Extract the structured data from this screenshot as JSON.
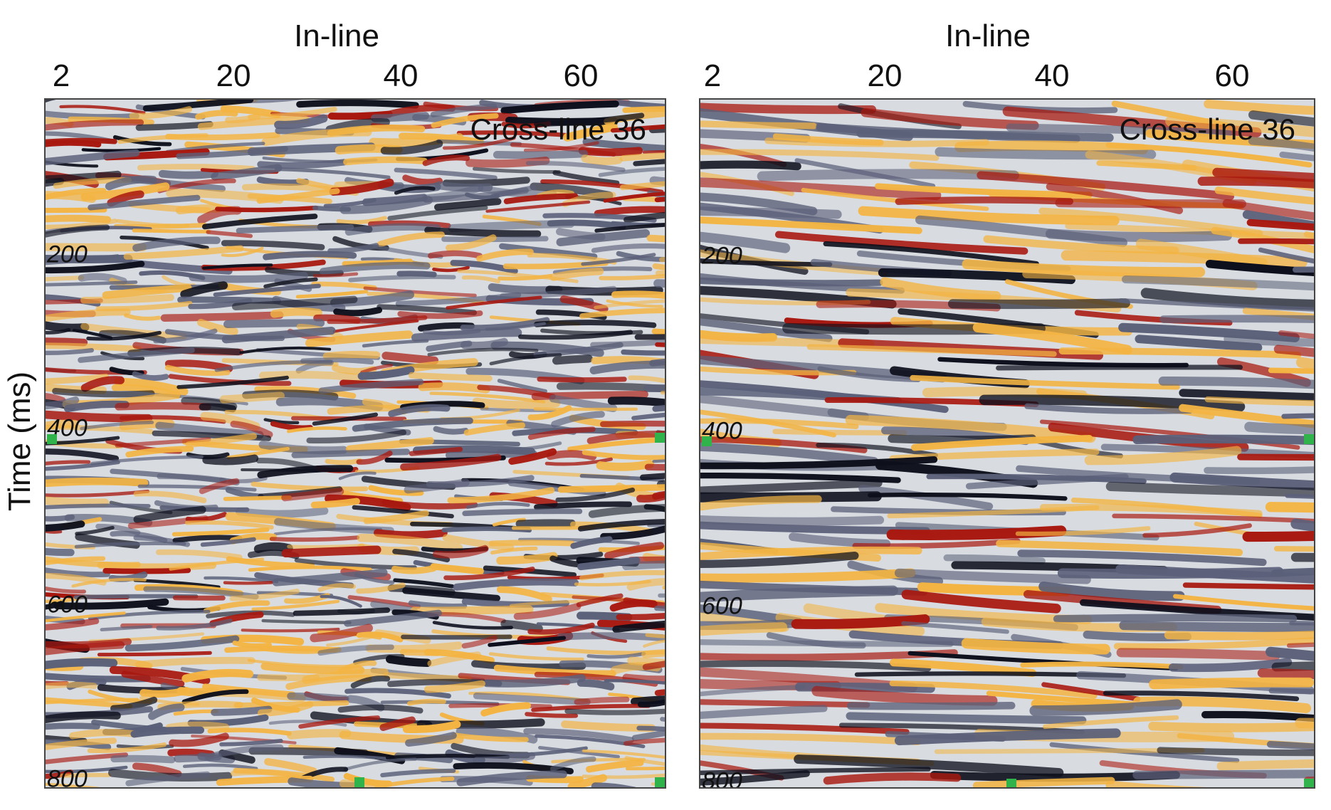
{
  "figure": {
    "y_axis_label": "Time (ms)",
    "colors": {
      "negative_peak": "#0d0f1c",
      "negative_mid": "#5b6079",
      "background": "#d8dce1",
      "positive_mid": "#f3b443",
      "positive_peak": "#a8180f",
      "marker": "#2fb34a"
    },
    "panels": [
      {
        "x_axis_label": "In-line",
        "title": "Cross-line 36",
        "x_ticks": [
          "2",
          "20",
          "40",
          "60"
        ],
        "y_ticks": [
          "200",
          "400",
          "600",
          "800"
        ],
        "texture": "noisy"
      },
      {
        "x_axis_label": "In-line",
        "title": "Cross-line 36",
        "x_ticks": [
          "2",
          "20",
          "40",
          "60"
        ],
        "y_ticks": [
          "200",
          "400",
          "600",
          "800"
        ],
        "texture": "smooth"
      }
    ]
  }
}
